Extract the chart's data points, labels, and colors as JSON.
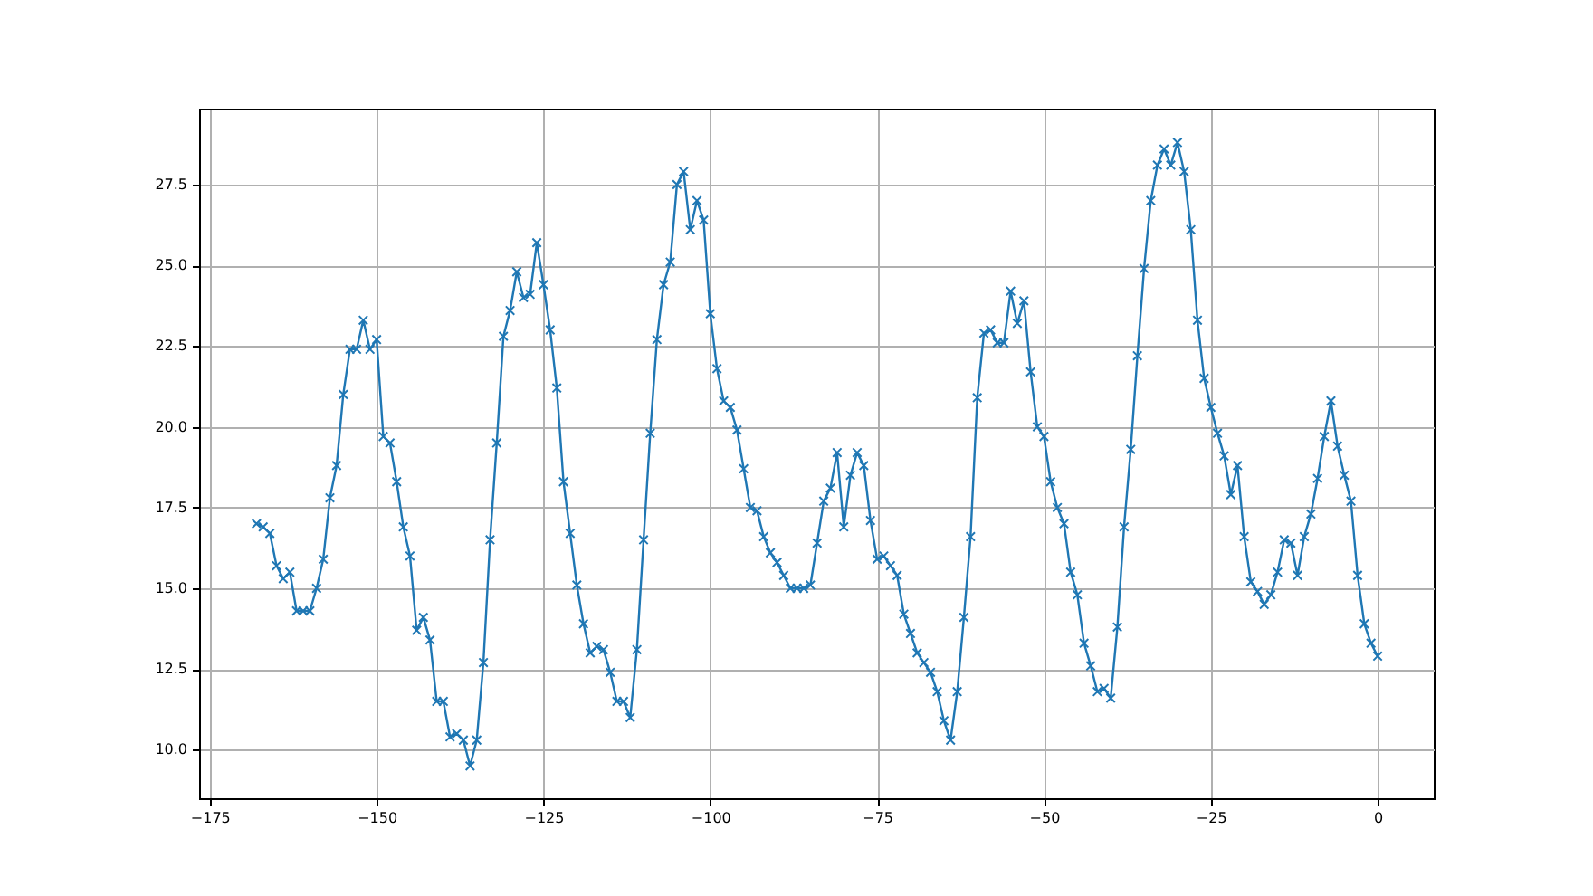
{
  "chart_data": {
    "type": "line",
    "x": [
      -168,
      -167,
      -166,
      -165,
      -164,
      -163,
      -162,
      -161,
      -160,
      -159,
      -158,
      -157,
      -156,
      -155,
      -154,
      -153,
      -152,
      -151,
      -150,
      -149,
      -148,
      -147,
      -146,
      -145,
      -144,
      -143,
      -142,
      -141,
      -140,
      -139,
      -138,
      -137,
      -136,
      -135,
      -134,
      -133,
      -132,
      -131,
      -130,
      -129,
      -128,
      -127,
      -126,
      -125,
      -124,
      -123,
      -122,
      -121,
      -120,
      -119,
      -118,
      -117,
      -116,
      -115,
      -114,
      -113,
      -112,
      -111,
      -110,
      -109,
      -108,
      -107,
      -106,
      -105,
      -104,
      -103,
      -102,
      -101,
      -100,
      -99,
      -98,
      -97,
      -96,
      -95,
      -94,
      -93,
      -92,
      -91,
      -90,
      -89,
      -88,
      -87,
      -86,
      -85,
      -84,
      -83,
      -82,
      -81,
      -80,
      -79,
      -78,
      -77,
      -76,
      -75,
      -74,
      -73,
      -72,
      -71,
      -70,
      -69,
      -68,
      -67,
      -66,
      -65,
      -64,
      -63,
      -62,
      -61,
      -60,
      -59,
      -58,
      -57,
      -56,
      -55,
      -54,
      -53,
      -52,
      -51,
      -50,
      -49,
      -48,
      -47,
      -46,
      -45,
      -44,
      -43,
      -42,
      -41,
      -40,
      -39,
      -38,
      -37,
      -36,
      -35,
      -34,
      -33,
      -32,
      -31,
      -30,
      -29,
      -28,
      -27,
      -26,
      -25,
      -24,
      -23,
      -22,
      -21,
      -20,
      -19,
      -18,
      -17,
      -16,
      -15,
      -14,
      -13,
      -12,
      -11,
      -10,
      -9,
      -8,
      -7,
      -6,
      -5,
      -4,
      -3,
      -2,
      -1,
      0
    ],
    "series": [
      {
        "color": "#1f77b4",
        "values": [
          17.0,
          16.9,
          16.7,
          15.7,
          15.3,
          15.5,
          14.3,
          14.3,
          14.3,
          15.0,
          15.9,
          17.8,
          18.8,
          21.0,
          22.4,
          22.4,
          23.3,
          22.4,
          22.7,
          19.7,
          19.5,
          18.3,
          16.9,
          16.0,
          13.7,
          14.1,
          13.4,
          11.5,
          11.5,
          10.4,
          10.5,
          10.3,
          9.5,
          10.3,
          12.7,
          16.5,
          19.5,
          22.8,
          23.6,
          24.8,
          24.0,
          24.1,
          25.7,
          24.4,
          23.0,
          21.2,
          18.3,
          16.7,
          15.1,
          13.9,
          13.0,
          13.2,
          13.1,
          12.4,
          11.5,
          11.5,
          11.0,
          13.1,
          16.5,
          19.8,
          22.7,
          24.4,
          25.1,
          27.5,
          27.9,
          26.1,
          27.0,
          26.4,
          23.5,
          21.8,
          20.8,
          20.6,
          19.9,
          18.7,
          17.5,
          17.4,
          16.6,
          16.1,
          15.8,
          15.4,
          15.0,
          15.0,
          15.0,
          15.1,
          16.4,
          17.7,
          18.1,
          19.2,
          16.9,
          18.5,
          19.2,
          18.8,
          17.1,
          15.9,
          16.0,
          15.7,
          15.4,
          14.2,
          13.6,
          13.0,
          12.7,
          12.4,
          11.8,
          10.9,
          10.3,
          11.8,
          14.1,
          16.6,
          20.9,
          22.9,
          23.0,
          22.6,
          22.6,
          24.2,
          23.2,
          23.9,
          21.7,
          20.0,
          19.7,
          18.3,
          17.5,
          17.0,
          15.5,
          14.8,
          13.3,
          12.6,
          11.8,
          11.9,
          11.6,
          13.8,
          16.9,
          19.3,
          22.2,
          24.9,
          27.0,
          28.1,
          28.6,
          28.1,
          28.8,
          27.9,
          26.1,
          23.3,
          21.5,
          20.6,
          19.8,
          19.1,
          17.9,
          18.8,
          16.6,
          15.2,
          14.9,
          14.5,
          14.8,
          15.5,
          16.5,
          16.4,
          15.4,
          16.6,
          17.3,
          18.4,
          19.7,
          20.8,
          19.4,
          18.5,
          17.7,
          15.4,
          13.9,
          13.3,
          12.9
        ]
      }
    ],
    "xlim": [
      -176.6,
      8.4
    ],
    "ylim": [
      8.5,
      29.85
    ],
    "xticks": [
      -175,
      -150,
      -125,
      -100,
      -75,
      -50,
      -25,
      0
    ],
    "yticks": [
      {
        "value": 10,
        "label": "10.0"
      },
      {
        "value": 12.5,
        "label": "12.5"
      },
      {
        "value": 15,
        "label": "15.0"
      },
      {
        "value": 17.5,
        "label": "17.5"
      },
      {
        "value": 20,
        "label": "20.0"
      },
      {
        "value": 22.5,
        "label": "22.5"
      },
      {
        "value": 25,
        "label": "25.0"
      },
      {
        "value": 27.5,
        "label": "27.5"
      }
    ],
    "grid": true,
    "marker": "cross",
    "line_style": "solid"
  }
}
